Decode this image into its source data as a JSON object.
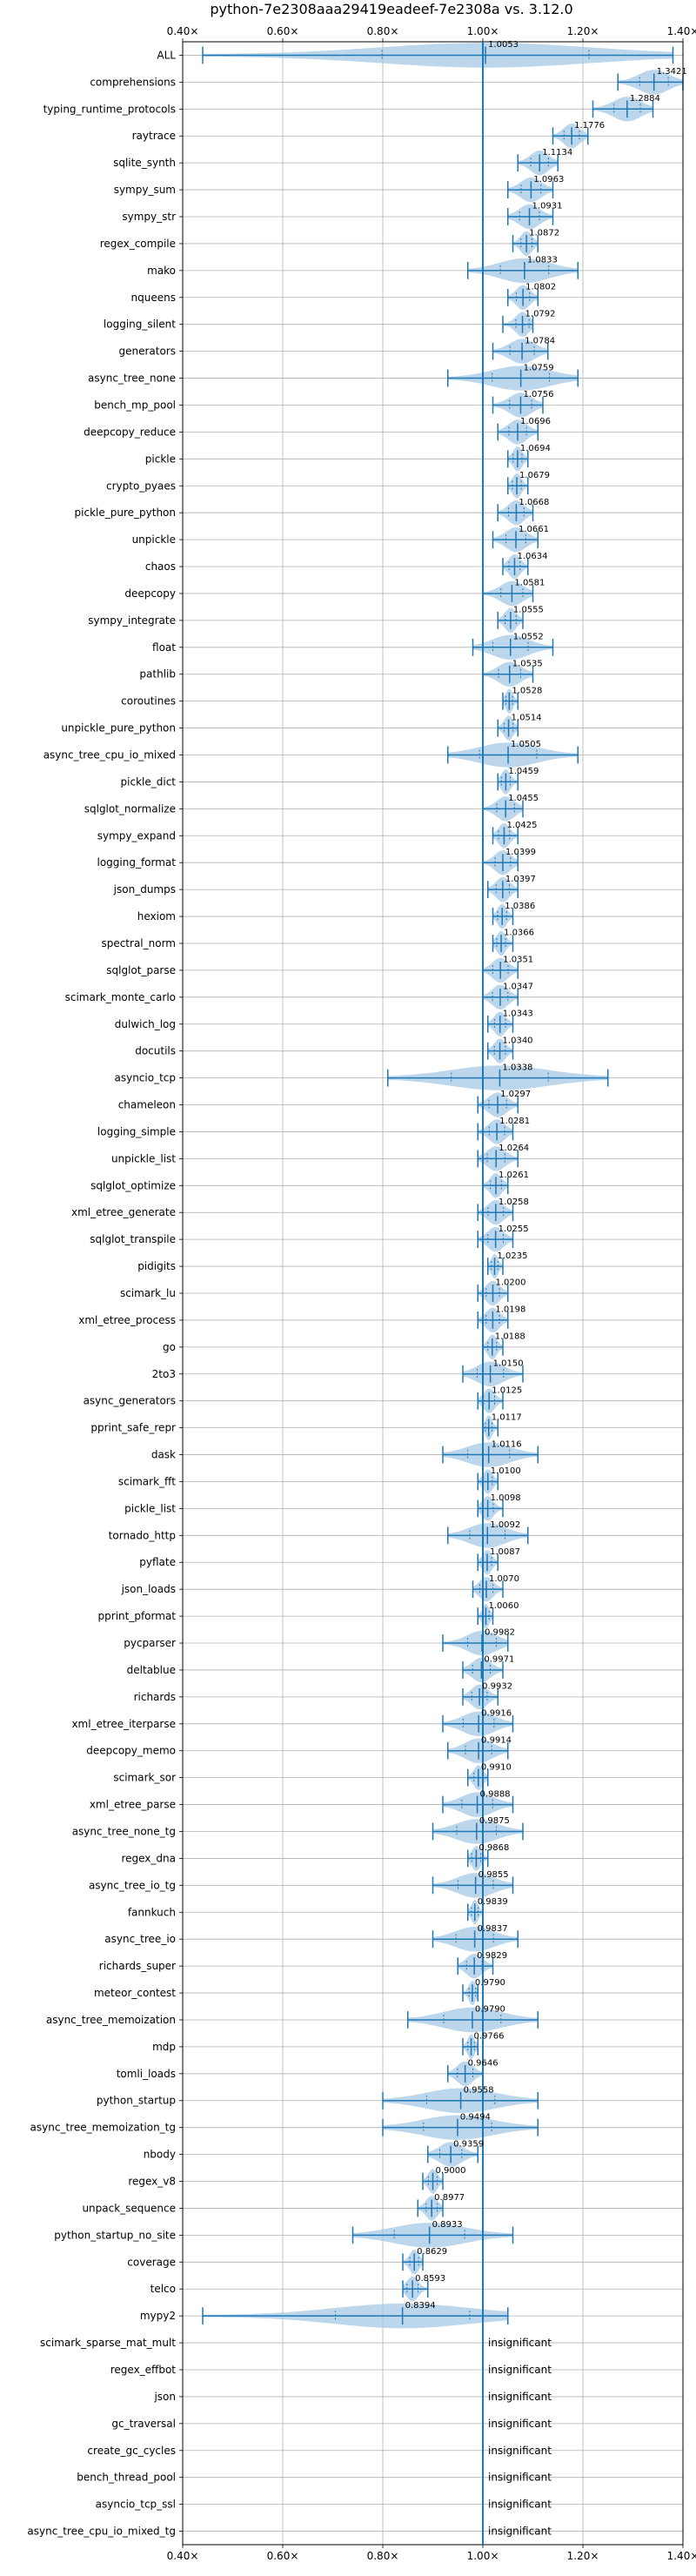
{
  "chart_data": {
    "type": "violin",
    "title": "python-7e2308aaa29419eadeef-7e2308a vs. 3.12.0",
    "xlabel": "",
    "ylabel": "",
    "xlim": [
      0.4,
      1.4
    ],
    "x_ticks": [
      "0.40×",
      "0.60×",
      "0.80×",
      "1.00×",
      "1.20×",
      "1.40×"
    ],
    "x_tick_values": [
      0.4,
      0.6,
      0.8,
      1.0,
      1.2,
      1.4
    ],
    "grid": true,
    "baseline": 1.0,
    "colors": {
      "violin": "#a6c8e6",
      "line": "#1f77b4",
      "grid": "#b0b0b0"
    },
    "insignificant_label": "insignificant",
    "benchmarks": [
      {
        "name": "ALL",
        "value": 1.0053,
        "label": "1.0053",
        "min": 0.44,
        "max": 1.38
      },
      {
        "name": "comprehensions",
        "value": 1.3421,
        "label": "1.3421",
        "min": 1.27,
        "max": 1.4
      },
      {
        "name": "typing_runtime_protocols",
        "value": 1.2884,
        "label": "1.2884",
        "min": 1.22,
        "max": 1.34
      },
      {
        "name": "raytrace",
        "value": 1.1776,
        "label": "1.1776",
        "min": 1.14,
        "max": 1.21
      },
      {
        "name": "sqlite_synth",
        "value": 1.1134,
        "label": "1.1134",
        "min": 1.07,
        "max": 1.15
      },
      {
        "name": "sympy_sum",
        "value": 1.0963,
        "label": "1.0963",
        "min": 1.05,
        "max": 1.14
      },
      {
        "name": "sympy_str",
        "value": 1.0931,
        "label": "1.0931",
        "min": 1.05,
        "max": 1.14
      },
      {
        "name": "regex_compile",
        "value": 1.0872,
        "label": "1.0872",
        "min": 1.06,
        "max": 1.11
      },
      {
        "name": "mako",
        "value": 1.0833,
        "label": "1.0833",
        "min": 0.97,
        "max": 1.19
      },
      {
        "name": "nqueens",
        "value": 1.0802,
        "label": "1.0802",
        "min": 1.05,
        "max": 1.11
      },
      {
        "name": "logging_silent",
        "value": 1.0792,
        "label": "1.0792",
        "min": 1.04,
        "max": 1.1
      },
      {
        "name": "generators",
        "value": 1.0784,
        "label": "1.0784",
        "min": 1.02,
        "max": 1.13
      },
      {
        "name": "async_tree_none",
        "value": 1.0759,
        "label": "1.0759",
        "min": 0.93,
        "max": 1.19
      },
      {
        "name": "bench_mp_pool",
        "value": 1.0756,
        "label": "1.0756",
        "min": 1.02,
        "max": 1.12
      },
      {
        "name": "deepcopy_reduce",
        "value": 1.0696,
        "label": "1.0696",
        "min": 1.03,
        "max": 1.11
      },
      {
        "name": "pickle",
        "value": 1.0694,
        "label": "1.0694",
        "min": 1.05,
        "max": 1.09
      },
      {
        "name": "crypto_pyaes",
        "value": 1.0679,
        "label": "1.0679",
        "min": 1.05,
        "max": 1.09
      },
      {
        "name": "pickle_pure_python",
        "value": 1.0668,
        "label": "1.0668",
        "min": 1.03,
        "max": 1.1
      },
      {
        "name": "unpickle",
        "value": 1.0661,
        "label": "1.0661",
        "min": 1.02,
        "max": 1.11
      },
      {
        "name": "chaos",
        "value": 1.0634,
        "label": "1.0634",
        "min": 1.04,
        "max": 1.09
      },
      {
        "name": "deepcopy",
        "value": 1.0581,
        "label": "1.0581",
        "min": 1.0,
        "max": 1.1
      },
      {
        "name": "sympy_integrate",
        "value": 1.0555,
        "label": "1.0555",
        "min": 1.03,
        "max": 1.08
      },
      {
        "name": "float",
        "value": 1.0552,
        "label": "1.0552",
        "min": 0.98,
        "max": 1.14
      },
      {
        "name": "pathlib",
        "value": 1.0535,
        "label": "1.0535",
        "min": 1.0,
        "max": 1.1
      },
      {
        "name": "coroutines",
        "value": 1.0528,
        "label": "1.0528",
        "min": 1.04,
        "max": 1.07
      },
      {
        "name": "unpickle_pure_python",
        "value": 1.0514,
        "label": "1.0514",
        "min": 1.03,
        "max": 1.07
      },
      {
        "name": "async_tree_cpu_io_mixed",
        "value": 1.0505,
        "label": "1.0505",
        "min": 0.93,
        "max": 1.19
      },
      {
        "name": "pickle_dict",
        "value": 1.0459,
        "label": "1.0459",
        "min": 1.03,
        "max": 1.07
      },
      {
        "name": "sqlglot_normalize",
        "value": 1.0455,
        "label": "1.0455",
        "min": 1.0,
        "max": 1.08
      },
      {
        "name": "sympy_expand",
        "value": 1.0425,
        "label": "1.0425",
        "min": 1.02,
        "max": 1.07
      },
      {
        "name": "logging_format",
        "value": 1.0399,
        "label": "1.0399",
        "min": 1.0,
        "max": 1.07
      },
      {
        "name": "json_dumps",
        "value": 1.0397,
        "label": "1.0397",
        "min": 1.01,
        "max": 1.07
      },
      {
        "name": "hexiom",
        "value": 1.0386,
        "label": "1.0386",
        "min": 1.02,
        "max": 1.06
      },
      {
        "name": "spectral_norm",
        "value": 1.0366,
        "label": "1.0366",
        "min": 1.02,
        "max": 1.06
      },
      {
        "name": "sqlglot_parse",
        "value": 1.0351,
        "label": "1.0351",
        "min": 1.0,
        "max": 1.07
      },
      {
        "name": "scimark_monte_carlo",
        "value": 1.0347,
        "label": "1.0347",
        "min": 1.0,
        "max": 1.07
      },
      {
        "name": "dulwich_log",
        "value": 1.0343,
        "label": "1.0343",
        "min": 1.01,
        "max": 1.06
      },
      {
        "name": "docutils",
        "value": 1.034,
        "label": "1.0340",
        "min": 1.01,
        "max": 1.06
      },
      {
        "name": "asyncio_tcp",
        "value": 1.0338,
        "label": "1.0338",
        "min": 0.81,
        "max": 1.25
      },
      {
        "name": "chameleon",
        "value": 1.0297,
        "label": "1.0297",
        "min": 0.99,
        "max": 1.07
      },
      {
        "name": "logging_simple",
        "value": 1.0281,
        "label": "1.0281",
        "min": 0.99,
        "max": 1.06
      },
      {
        "name": "unpickle_list",
        "value": 1.0264,
        "label": "1.0264",
        "min": 0.99,
        "max": 1.07
      },
      {
        "name": "sqlglot_optimize",
        "value": 1.0261,
        "label": "1.0261",
        "min": 1.0,
        "max": 1.05
      },
      {
        "name": "xml_etree_generate",
        "value": 1.0258,
        "label": "1.0258",
        "min": 0.99,
        "max": 1.06
      },
      {
        "name": "sqlglot_transpile",
        "value": 1.0255,
        "label": "1.0255",
        "min": 0.99,
        "max": 1.06
      },
      {
        "name": "pidigits",
        "value": 1.0235,
        "label": "1.0235",
        "min": 1.01,
        "max": 1.04
      },
      {
        "name": "scimark_lu",
        "value": 1.02,
        "label": "1.0200",
        "min": 0.99,
        "max": 1.05
      },
      {
        "name": "xml_etree_process",
        "value": 1.0198,
        "label": "1.0198",
        "min": 0.99,
        "max": 1.05
      },
      {
        "name": "go",
        "value": 1.0188,
        "label": "1.0188",
        "min": 1.0,
        "max": 1.04
      },
      {
        "name": "2to3",
        "value": 1.015,
        "label": "1.0150",
        "min": 0.96,
        "max": 1.08
      },
      {
        "name": "async_generators",
        "value": 1.0125,
        "label": "1.0125",
        "min": 0.99,
        "max": 1.04
      },
      {
        "name": "pprint_safe_repr",
        "value": 1.0117,
        "label": "1.0117",
        "min": 1.0,
        "max": 1.03
      },
      {
        "name": "dask",
        "value": 1.0116,
        "label": "1.0116",
        "min": 0.92,
        "max": 1.11
      },
      {
        "name": "scimark_fft",
        "value": 1.01,
        "label": "1.0100",
        "min": 0.99,
        "max": 1.03
      },
      {
        "name": "pickle_list",
        "value": 1.0098,
        "label": "1.0098",
        "min": 0.99,
        "max": 1.04
      },
      {
        "name": "tornado_http",
        "value": 1.0092,
        "label": "1.0092",
        "min": 0.93,
        "max": 1.09
      },
      {
        "name": "pyflate",
        "value": 1.0087,
        "label": "1.0087",
        "min": 0.99,
        "max": 1.03
      },
      {
        "name": "json_loads",
        "value": 1.007,
        "label": "1.0070",
        "min": 0.98,
        "max": 1.04
      },
      {
        "name": "pprint_pformat",
        "value": 1.006,
        "label": "1.0060",
        "min": 0.99,
        "max": 1.02
      },
      {
        "name": "pycparser",
        "value": 0.9982,
        "label": "0.9982",
        "min": 0.92,
        "max": 1.05
      },
      {
        "name": "deltablue",
        "value": 0.9971,
        "label": "0.9971",
        "min": 0.96,
        "max": 1.04
      },
      {
        "name": "richards",
        "value": 0.9932,
        "label": "0.9932",
        "min": 0.96,
        "max": 1.03
      },
      {
        "name": "xml_etree_iterparse",
        "value": 0.9916,
        "label": "0.9916",
        "min": 0.92,
        "max": 1.06
      },
      {
        "name": "deepcopy_memo",
        "value": 0.9914,
        "label": "0.9914",
        "min": 0.93,
        "max": 1.05
      },
      {
        "name": "scimark_sor",
        "value": 0.991,
        "label": "0.9910",
        "min": 0.97,
        "max": 1.01
      },
      {
        "name": "xml_etree_parse",
        "value": 0.9888,
        "label": "0.9888",
        "min": 0.92,
        "max": 1.06
      },
      {
        "name": "async_tree_none_tg",
        "value": 0.9875,
        "label": "0.9875",
        "min": 0.9,
        "max": 1.08
      },
      {
        "name": "regex_dna",
        "value": 0.9868,
        "label": "0.9868",
        "min": 0.97,
        "max": 1.01
      },
      {
        "name": "async_tree_io_tg",
        "value": 0.9855,
        "label": "0.9855",
        "min": 0.9,
        "max": 1.06
      },
      {
        "name": "fannkuch",
        "value": 0.9839,
        "label": "0.9839",
        "min": 0.97,
        "max": 1.0
      },
      {
        "name": "async_tree_io",
        "value": 0.9837,
        "label": "0.9837",
        "min": 0.9,
        "max": 1.07
      },
      {
        "name": "richards_super",
        "value": 0.9829,
        "label": "0.9829",
        "min": 0.95,
        "max": 1.02
      },
      {
        "name": "meteor_contest",
        "value": 0.979,
        "label": "0.9790",
        "min": 0.96,
        "max": 0.99
      },
      {
        "name": "async_tree_memoization",
        "value": 0.979,
        "label": "0.9790",
        "min": 0.85,
        "max": 1.11
      },
      {
        "name": "mdp",
        "value": 0.9766,
        "label": "0.9766",
        "min": 0.96,
        "max": 0.99
      },
      {
        "name": "tomli_loads",
        "value": 0.9646,
        "label": "0.9646",
        "min": 0.93,
        "max": 1.0
      },
      {
        "name": "python_startup",
        "value": 0.9558,
        "label": "0.9558",
        "min": 0.8,
        "max": 1.11
      },
      {
        "name": "async_tree_memoization_tg",
        "value": 0.9494,
        "label": "0.9494",
        "min": 0.8,
        "max": 1.11
      },
      {
        "name": "nbody",
        "value": 0.9359,
        "label": "0.9359",
        "min": 0.89,
        "max": 0.99
      },
      {
        "name": "regex_v8",
        "value": 0.9,
        "label": "0.9000",
        "min": 0.88,
        "max": 0.92
      },
      {
        "name": "unpack_sequence",
        "value": 0.8977,
        "label": "0.8977",
        "min": 0.87,
        "max": 0.92
      },
      {
        "name": "python_startup_no_site",
        "value": 0.8933,
        "label": "0.8933",
        "min": 0.74,
        "max": 1.06
      },
      {
        "name": "coverage",
        "value": 0.8629,
        "label": "0.8629",
        "min": 0.84,
        "max": 0.88
      },
      {
        "name": "telco",
        "value": 0.8593,
        "label": "0.8593",
        "min": 0.84,
        "max": 0.89
      },
      {
        "name": "mypy2",
        "value": 0.8394,
        "label": "0.8394",
        "min": 0.44,
        "max": 1.05
      },
      {
        "name": "scimark_sparse_mat_mult",
        "value": null,
        "label": "",
        "min": null,
        "max": null
      },
      {
        "name": "regex_effbot",
        "value": null,
        "label": "",
        "min": null,
        "max": null
      },
      {
        "name": "json",
        "value": null,
        "label": "",
        "min": null,
        "max": null
      },
      {
        "name": "gc_traversal",
        "value": null,
        "label": "",
        "min": null,
        "max": null
      },
      {
        "name": "create_gc_cycles",
        "value": null,
        "label": "",
        "min": null,
        "max": null
      },
      {
        "name": "bench_thread_pool",
        "value": null,
        "label": "",
        "min": null,
        "max": null
      },
      {
        "name": "asyncio_tcp_ssl",
        "value": null,
        "label": "",
        "min": null,
        "max": null
      },
      {
        "name": "async_tree_cpu_io_mixed_tg",
        "value": null,
        "label": "",
        "min": null,
        "max": null
      }
    ]
  }
}
